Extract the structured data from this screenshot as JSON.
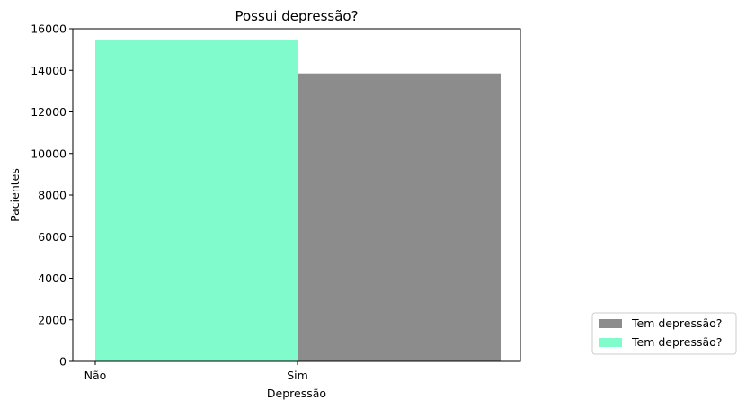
{
  "chart_data": {
    "type": "bar",
    "title": "Possui depressão?",
    "xlabel": "Depressão",
    "ylabel": "Pacientes",
    "ylim": [
      0,
      16000
    ],
    "yticks": [
      0,
      2000,
      4000,
      6000,
      8000,
      10000,
      12000,
      14000,
      16000
    ],
    "xticks": [
      "Não",
      "Sim"
    ],
    "grid": false,
    "legend_position": "bottom-right, outside plot",
    "series": [
      {
        "name": "Tem depressão?",
        "color": "#8c8c8c",
        "category": "Sim",
        "value": 13850
      },
      {
        "name": "Tem depressão?",
        "color": "#7ffbcc",
        "category": "Não",
        "value": 15450
      }
    ]
  }
}
